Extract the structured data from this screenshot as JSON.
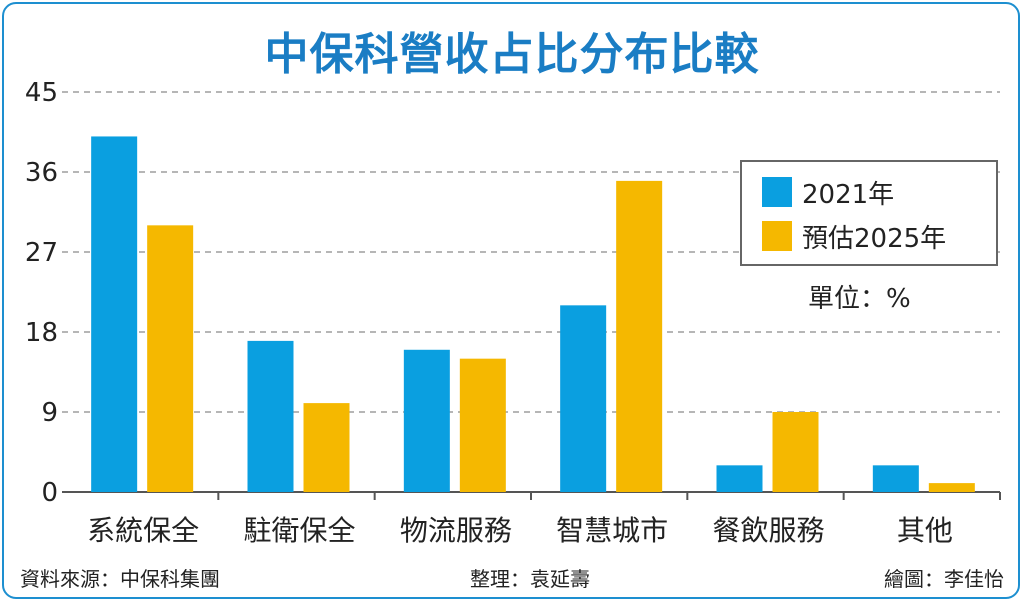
{
  "title": "中保科營收占比分布比較",
  "legend": {
    "item1": {
      "label": "2021年",
      "color": "#0a9fe0"
    },
    "item2": {
      "label": "預估2025年",
      "color": "#f5b800"
    }
  },
  "unit": "單位：%",
  "footer": {
    "source": "資料來源：中保科集團",
    "editor": "整理：袁延壽",
    "artist": "繪圖：李佳怡"
  },
  "chart_data": {
    "type": "bar",
    "title": "中保科營收占比分布比較",
    "xlabel": "",
    "ylabel": "",
    "ylim": [
      0,
      45
    ],
    "yticks": [
      0,
      9,
      18,
      27,
      36,
      45
    ],
    "grid": true,
    "legend_position": "top-right",
    "categories": [
      "系統保全",
      "駐衛保全",
      "物流服務",
      "智慧城市",
      "餐飲服務",
      "其他"
    ],
    "series": [
      {
        "name": "2021年",
        "color": "#0a9fe0",
        "values": [
          40,
          17,
          16,
          21,
          3,
          3
        ]
      },
      {
        "name": "預估2025年",
        "color": "#f5b800",
        "values": [
          30,
          10,
          15,
          35,
          9,
          1
        ]
      }
    ]
  }
}
